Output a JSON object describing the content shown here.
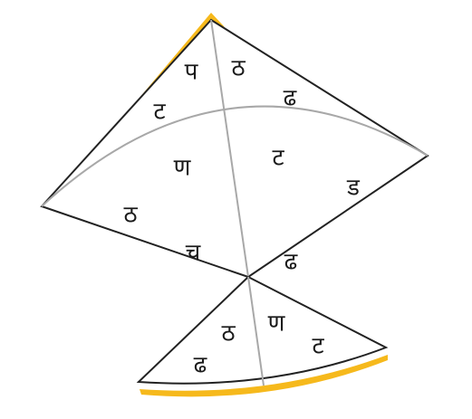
{
  "colors": {
    "background": "#ffffff",
    "accent": "#f6b91c",
    "outline": "#222222",
    "fold_line": "#a8a8a8",
    "text": "#1a1a1a"
  },
  "kite": {
    "upper_left_labels": [
      "प",
      "ट"
    ],
    "upper_right_labels": [
      "ठ",
      "ढ"
    ],
    "lower_left_labels": [
      "ण",
      "ठ",
      "च"
    ],
    "lower_right_labels": [
      "ट",
      "ड",
      "ढ"
    ]
  },
  "tail": {
    "labels": [
      "ठ",
      "ढ",
      "ण",
      "ट"
    ]
  }
}
